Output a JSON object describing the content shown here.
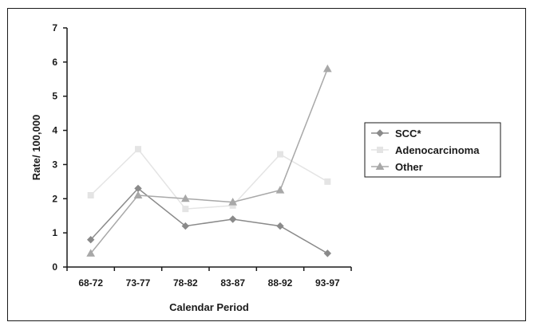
{
  "chart_data": {
    "type": "line",
    "title": "",
    "xlabel": "Calendar Period",
    "ylabel": "Rate/ 100,000",
    "categories": [
      "68-72",
      "73-77",
      "78-82",
      "83-87",
      "88-92",
      "93-97"
    ],
    "ylim": [
      0,
      7
    ],
    "yticks": [
      "0",
      "1",
      "2",
      "3",
      "4",
      "5",
      "6",
      "7"
    ],
    "grid": false,
    "legend_position": "right",
    "series": [
      {
        "name": "SCC*",
        "values": [
          0.8,
          2.3,
          1.2,
          1.4,
          1.2,
          0.4
        ],
        "color": "#8a8a8a",
        "marker": "diamond"
      },
      {
        "name": "Adenocarcinoma",
        "values": [
          2.1,
          3.45,
          1.7,
          1.8,
          3.3,
          2.5
        ],
        "color": "#e4e4e4",
        "marker": "square"
      },
      {
        "name": "Other",
        "values": [
          0.4,
          2.1,
          2.0,
          1.9,
          2.25,
          5.8
        ],
        "color": "#a8a8a8",
        "marker": "triangle"
      }
    ]
  }
}
